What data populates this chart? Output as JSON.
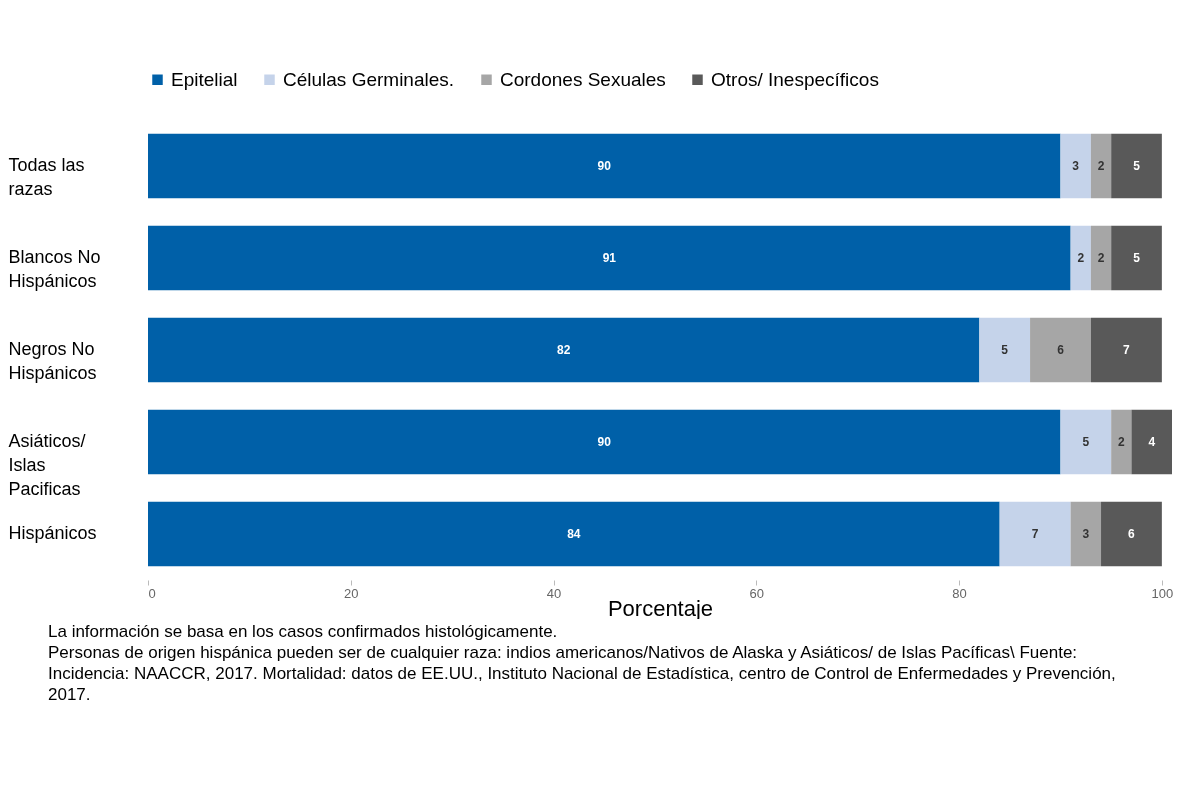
{
  "chart_data": {
    "type": "bar",
    "orientation": "horizontal",
    "stacked": true,
    "categories": [
      "Todas las razas",
      "Blancos No Hispánicos",
      "Negros No Hispánicos",
      "Asiáticos/ Islas Pacificas",
      "Hispánicos"
    ],
    "series": [
      {
        "name": "Epitelial",
        "color": "#0060a8",
        "values": [
          90,
          91,
          82,
          90,
          84
        ]
      },
      {
        "name": "Células Germinales.",
        "color": "#c5d3ea",
        "values": [
          3,
          2,
          5,
          5,
          7
        ]
      },
      {
        "name": "Cordones Sexuales",
        "color": "#a6a6a6",
        "values": [
          2,
          2,
          6,
          2,
          3
        ]
      },
      {
        "name": "Otros/ Inespecíficos",
        "color": "#595959",
        "values": [
          5,
          5,
          7,
          4,
          6
        ]
      }
    ],
    "xlim": [
      0,
      101
    ],
    "xticks": [
      0,
      20,
      40,
      60,
      80,
      100
    ],
    "xlabel": "Porcentaje",
    "grid": false,
    "legend": "top",
    "data_labels": true,
    "annotations": [
      "La información se basa en los casos confirmados histológicamente.",
      "Personas de origen hispánica pueden ser de cualquier raza: indios americanos/Nativos de Alaska y Asiáticos/ de Islas Pacíficas\\ Fuente:  Incidencia: NAACCR, 2017. Mortalidad: datos de EE.UU., Instituto Nacional de Estadística, centro de Control de Enfermedades y Prevención, 2017."
    ]
  }
}
